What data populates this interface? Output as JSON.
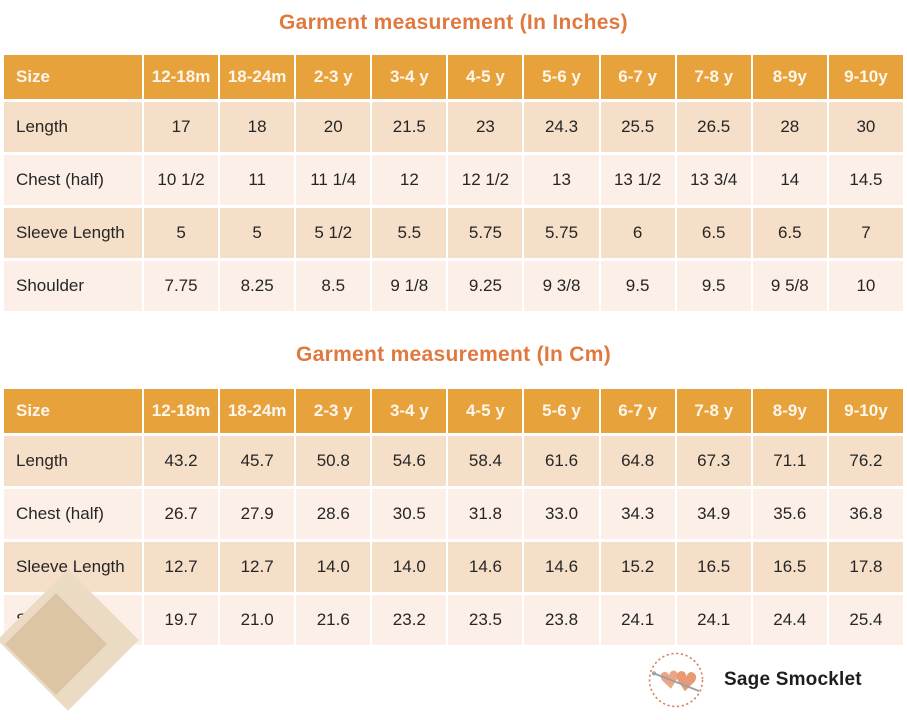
{
  "colors": {
    "title": "#e0793f",
    "header_bg": "#e8a23c",
    "header_text": "#fdf6ec",
    "row_dark_bg": "#f6dfc8",
    "row_light_bg": "#fcefe7",
    "body_text": "#262626",
    "diamond_light": "#ebdbc2",
    "diamond_dark": "#dcc5a4",
    "logo_ring": "#d9825f",
    "logo_heart": "#eda585",
    "logo_needle": "#9aa0a6"
  },
  "brand": {
    "name": "Sage Smocklet"
  },
  "chart_data": [
    {
      "type": "table",
      "title": "Garment measurement (In Inches)",
      "unit": "inches",
      "corner_label": "Size",
      "columns": [
        "12-18m",
        "18-24m",
        "2-3 y",
        "3-4 y",
        "4-5 y",
        "5-6 y",
        "6-7 y",
        "7-8 y",
        "8-9y",
        "9-10y"
      ],
      "rows": [
        {
          "label": "Length",
          "values": [
            "17",
            "18",
            "20",
            "21.5",
            "23",
            "24.3",
            "25.5",
            "26.5",
            "28",
            "30"
          ]
        },
        {
          "label": "Chest (half)",
          "values": [
            "10 1/2",
            "11",
            "11 1/4",
            "12",
            "12 1/2",
            "13",
            "13 1/2",
            "13 3/4",
            "14",
            "14.5"
          ]
        },
        {
          "label": "Sleeve Length",
          "values": [
            "5",
            "5",
            "5 1/2",
            "5.5",
            "5.75",
            "5.75",
            "6",
            "6.5",
            "6.5",
            "7"
          ]
        },
        {
          "label": "Shoulder",
          "values": [
            "7.75",
            "8.25",
            "8.5",
            "9 1/8",
            "9.25",
            "9 3/8",
            "9.5",
            "9.5",
            "9 5/8",
            "10"
          ]
        }
      ]
    },
    {
      "type": "table",
      "title": "Garment measurement (In Cm)",
      "unit": "cm",
      "corner_label": "Size",
      "columns": [
        "12-18m",
        "18-24m",
        "2-3 y",
        "3-4 y",
        "4-5 y",
        "5-6 y",
        "6-7 y",
        "7-8 y",
        "8-9y",
        "9-10y"
      ],
      "rows": [
        {
          "label": "Length",
          "values": [
            "43.2",
            "45.7",
            "50.8",
            "54.6",
            "58.4",
            "61.6",
            "64.8",
            "67.3",
            "71.1",
            "76.2"
          ]
        },
        {
          "label": "Chest (half)",
          "values": [
            "26.7",
            "27.9",
            "28.6",
            "30.5",
            "31.8",
            "33.0",
            "34.3",
            "34.9",
            "35.6",
            "36.8"
          ]
        },
        {
          "label": "Sleeve Length",
          "values": [
            "12.7",
            "12.7",
            "14.0",
            "14.0",
            "14.6",
            "14.6",
            "15.2",
            "16.5",
            "16.5",
            "17.8"
          ]
        },
        {
          "label": "Shoulder",
          "values": [
            "19.7",
            "21.0",
            "21.6",
            "23.2",
            "23.5",
            "23.8",
            "24.1",
            "24.1",
            "24.4",
            "25.4"
          ]
        }
      ]
    }
  ]
}
